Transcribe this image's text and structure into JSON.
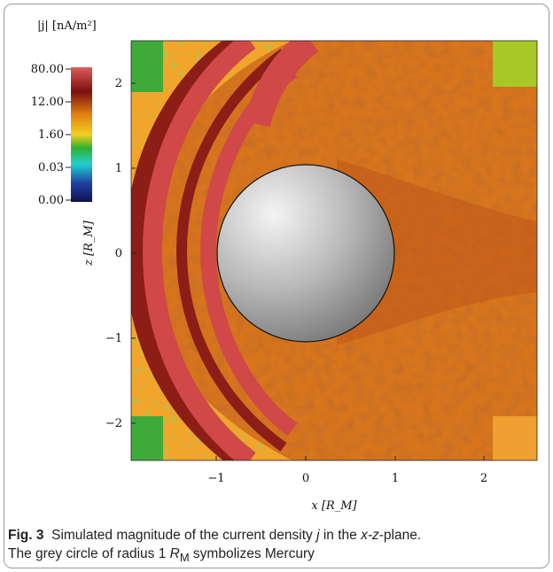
{
  "figure": {
    "caption_label": "Fig. 3",
    "caption_line1_a": "Simulated magnitude of the current density ",
    "caption_symbol_j": "j",
    "caption_line1_b": " in the ",
    "caption_plane": "x-z",
    "caption_line1_c": "-plane.",
    "caption_line2_a": "The grey circle of radius 1 ",
    "caption_radius_symbol": "R",
    "caption_radius_sub": "M",
    "caption_line2_b": " symbolizes Mercury"
  },
  "colorbar": {
    "label": "|j| [nA/m²]",
    "tick_labels": [
      "80.00",
      "12.00",
      "1.60",
      "0.03",
      "0.00"
    ],
    "colors": [
      "#e05a5a",
      "#7a1010",
      "#e08010",
      "#f0d020",
      "#30b030",
      "#20d0d0",
      "#2040a0",
      "#101050"
    ]
  },
  "axes": {
    "xlabel": "x [R_M]",
    "ylabel": "z [R_M]",
    "x_ticks": [
      "−1",
      "0",
      "1",
      "2"
    ],
    "y_ticks": [
      "2",
      "1",
      "0",
      "−1",
      "−2"
    ]
  },
  "chart_data": {
    "type": "heatmap",
    "title": "",
    "xlabel": "x [R_M]",
    "ylabel": "z [R_M]",
    "xlim": [
      -1.95,
      2.6
    ],
    "ylim": [
      -2.35,
      2.35
    ],
    "x_ticks": [
      -1,
      0,
      1,
      2
    ],
    "y_ticks": [
      -2,
      -1,
      0,
      1,
      2
    ],
    "colorbar_label": "|j| [nA/m²]",
    "colorbar_ticks": [
      80.0,
      12.0,
      1.6,
      0.03,
      0.0
    ],
    "planet": {
      "name": "Mercury",
      "center": [
        0,
        0
      ],
      "radius": 1,
      "color": "grey"
    }
  }
}
